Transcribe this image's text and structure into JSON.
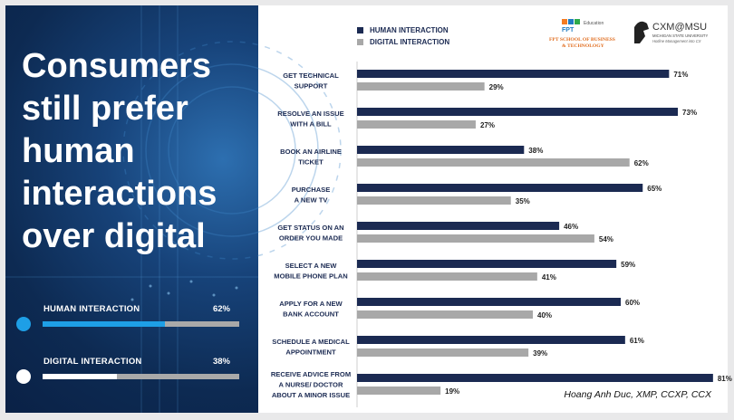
{
  "headline": [
    "Consumers",
    "still prefer",
    "human",
    "interactions",
    "over digital"
  ],
  "summary": [
    {
      "label": "HUMAN INTERACTION",
      "pct_text": "62%",
      "value": 62,
      "color": "#1e9fe6"
    },
    {
      "label": "DIGITAL INTERACTION",
      "pct_text": "38%",
      "value": 38,
      "color": "#ffffff"
    }
  ],
  "logos": {
    "fpt_mark": "FPT",
    "fpt_sub": "Education",
    "fpt_line1": "FPT SCHOOL OF BUSINESS",
    "fpt_line2": "& TECHNOLOGY",
    "cxm_title": "CXM@MSU",
    "cxm_line1": "MICHIGAN STATE UNIVERSITY",
    "cxm_line2": "Hotline Management into CX"
  },
  "credit": "Hoang Anh Duc, XMP, CCXP, CCX",
  "colors": {
    "human": "#1b2a52",
    "digital": "#a8a8a8",
    "label": "#1b2a52"
  },
  "chart_data": {
    "type": "bar",
    "orientation": "horizontal",
    "categories": [
      [
        "GET TECHNICAL",
        "SUPPORT"
      ],
      [
        "RESOLVE AN ISSUE",
        "WITH A BILL"
      ],
      [
        "BOOK AN AIRLINE",
        "TICKET"
      ],
      [
        "PURCHASE",
        "A NEW TV"
      ],
      [
        "GET STATUS ON AN",
        "ORDER YOU MADE"
      ],
      [
        "SELECT A NEW",
        "MOBILE PHONE PLAN"
      ],
      [
        "APPLY FOR A NEW",
        "BANK ACCOUNT"
      ],
      [
        "SCHEDULE A MEDICAL",
        "APPOINTMENT"
      ],
      [
        "RECEIVE ADVICE FROM",
        "A NURSE/ DOCTOR",
        "ABOUT A MINOR ISSUE"
      ]
    ],
    "series": [
      {
        "name": "HUMAN INTERACTION",
        "values": [
          71,
          73,
          38,
          65,
          46,
          59,
          60,
          61,
          81
        ],
        "labels": [
          "71%",
          "73%",
          "38%",
          "65%",
          "46%",
          "59%",
          "60%",
          "61%",
          "81%"
        ]
      },
      {
        "name": "DIGITAL INTERACTION",
        "values": [
          29,
          27,
          62,
          35,
          54,
          41,
          40,
          39,
          19
        ],
        "labels": [
          "29%",
          "27%",
          "62%",
          "35%",
          "54%",
          "41%",
          "40%",
          "39%",
          "19%"
        ]
      }
    ],
    "xlim": [
      0,
      81
    ],
    "unit": "%"
  }
}
